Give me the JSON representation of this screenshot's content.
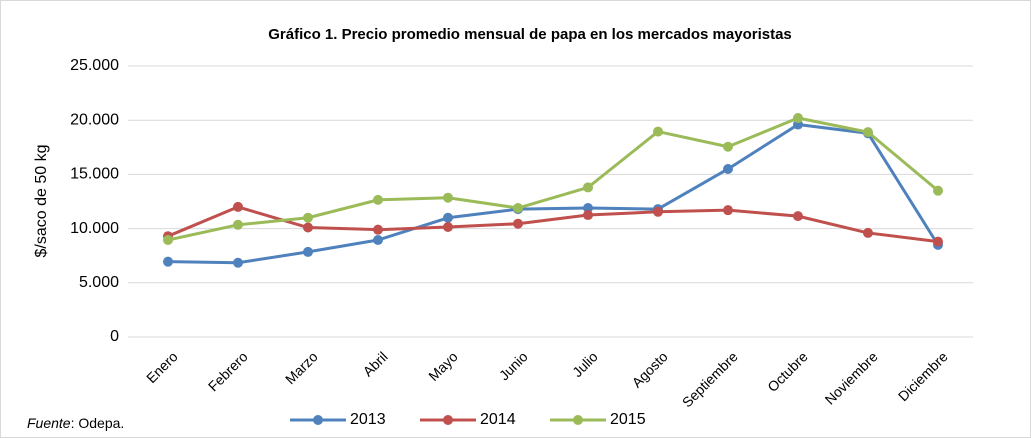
{
  "chart_data": {
    "type": "line",
    "title": "Gráfico 1. Precio promedio mensual de papa en los mercados mayoristas",
    "y_label": "$/saco de 50 kg",
    "source": {
      "label": "Fuente",
      "text": ": Odepa."
    },
    "categories": [
      "Enero",
      "Febrero",
      "Marzo",
      "Abril",
      "Mayo",
      "Junio",
      "Julio",
      "Agosto",
      "Septiembre",
      "Octubre",
      "Noviembre",
      "Diciembre"
    ],
    "series": [
      {
        "name": "2013",
        "color": "#4f81bd",
        "values": [
          6950,
          6850,
          7850,
          8950,
          11000,
          11800,
          11900,
          11800,
          15500,
          19600,
          18800,
          8500
        ]
      },
      {
        "name": "2014",
        "color": "#c0504d",
        "values": [
          9300,
          12000,
          10100,
          9900,
          10150,
          10450,
          11250,
          11550,
          11700,
          11150,
          9600,
          8800
        ]
      },
      {
        "name": "2015",
        "color": "#9bbb59",
        "values": [
          8950,
          10350,
          11000,
          12650,
          12850,
          11900,
          13800,
          18950,
          17550,
          20200,
          18900,
          13500
        ]
      }
    ],
    "ylim": [
      0,
      25000
    ],
    "yticks": [
      0,
      {
        "value": 5000,
        "label": "5.000"
      },
      {
        "value": 10000,
        "label": "10.000"
      },
      {
        "value": 15000,
        "label": "15.000"
      },
      {
        "value": 20000,
        "label": "20.000"
      },
      {
        "value": 25000,
        "label": "25.000"
      }
    ],
    "grid": true,
    "legend": "bottom"
  }
}
